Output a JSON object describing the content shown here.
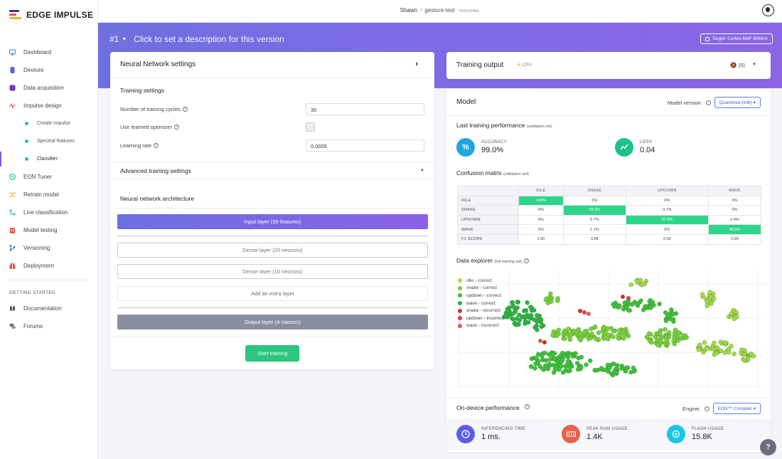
{
  "brand": {
    "name": "EDGE IMPULSE",
    "colors": [
      "#2e3a8c",
      "#e8534a",
      "#f2b132",
      "#26c281"
    ]
  },
  "topbar": {
    "user": "Shawn",
    "separator": "/",
    "project": "gesture-test",
    "project_badge": "PERSONAL"
  },
  "sidebar": {
    "items": [
      {
        "label": "Dashboard",
        "icon": "monitor-icon",
        "color": "#3b82f6"
      },
      {
        "label": "Devices",
        "icon": "devices-icon",
        "color": "#5b5fe6"
      },
      {
        "label": "Data acquisition",
        "icon": "database-icon",
        "color": "#6d3fc0"
      },
      {
        "label": "Impulse design",
        "icon": "pulse-icon",
        "color": "#e8534a"
      }
    ],
    "sub_items": [
      {
        "label": "Create impulse"
      },
      {
        "label": "Spectral features"
      },
      {
        "label": "Classifier"
      }
    ],
    "items2": [
      {
        "label": "EON Tuner",
        "icon": "tuner-icon",
        "color": "#26c281"
      },
      {
        "label": "Retrain model",
        "icon": "shuffle-icon",
        "color": "#f2b132"
      },
      {
        "label": "Live classification",
        "icon": "live-icon",
        "color": "#26c281"
      },
      {
        "label": "Model testing",
        "icon": "clipboard-icon",
        "color": "#e8534a"
      },
      {
        "label": "Versioning",
        "icon": "branch-icon",
        "color": "#3b5fe0"
      },
      {
        "label": "Deployment",
        "icon": "gift-icon",
        "color": "#e8534a"
      }
    ],
    "section_label": "GETTING STARTED",
    "getting_started": [
      {
        "label": "Documentation",
        "icon": "book-icon"
      },
      {
        "label": "Forums",
        "icon": "chat-icon"
      }
    ]
  },
  "banner": {
    "version": "#1",
    "description": "Click to set a description for this version",
    "target": "Target: Cortex-M4F 80MHz"
  },
  "nn_settings": {
    "title": "Neural Network settings",
    "training_settings": "Training settings",
    "cycles_label": "Number of training cycles",
    "cycles_value": "30",
    "optimizer_label": "Use learned optimizer",
    "lr_label": "Learning rate",
    "lr_value": "0.0005",
    "advanced": "Advanced training settings",
    "architecture": "Neural network architecture",
    "layers": {
      "input": "Input layer (39 features)",
      "dense1": "Dense layer (20 neurons)",
      "dense2": "Dense layer (10 neurons)",
      "extra": "Add an extra layer",
      "output": "Output layer (4 classes)"
    },
    "start": "Start training"
  },
  "training_output": {
    "title": "Training output",
    "cpu": "CPU",
    "notifications": "(0)"
  },
  "model": {
    "title": "Model",
    "version_label": "Model version:",
    "version_value": "Quantized (int8)",
    "last_perf": "Last training performance",
    "last_perf_note": "(validation set)",
    "accuracy_label": "ACCURACY",
    "accuracy_value": "99.0%",
    "loss_label": "LOSS",
    "loss_value": "0.04",
    "confusion_title": "Confusion matrix",
    "confusion_note": "(validation set)",
    "explorer_title": "Data explorer",
    "explorer_note": "(full training set)",
    "ondevice_title": "On-device performance",
    "engine_label": "Engine:",
    "engine_value": "EON™ Compiler",
    "inferencing_label": "INFERENCING TIME",
    "inferencing_value": "1 ms.",
    "ram_label": "PEAK RAM USAGE",
    "ram_value": "1.4K",
    "flash_label": "FLASH USAGE",
    "flash_value": "15.8K"
  },
  "confusion": {
    "columns": [
      "",
      "IDLE",
      "SNAKE",
      "UPDOWN",
      "WAVE"
    ],
    "rows": [
      {
        "label": "IDLE",
        "cells": [
          "100%",
          "0%",
          "0%",
          "0%"
        ],
        "hi": 0
      },
      {
        "label": "SNAKE",
        "cells": [
          "0%",
          "99.3%",
          "0.7%",
          "0%"
        ],
        "hi": 1
      },
      {
        "label": "UPDOWN",
        "cells": [
          "0%",
          "0.7%",
          "97.9%",
          "1.4%"
        ],
        "hi": 2
      },
      {
        "label": "WAVE",
        "cells": [
          "0%",
          "1.1%",
          "0%",
          "98.9%"
        ],
        "hi": 3
      },
      {
        "label": "F1 SCORE",
        "cells": [
          "1.00",
          "0.98",
          "0.99",
          "0.99"
        ],
        "hi": -1
      }
    ]
  },
  "legend": [
    {
      "label": "idle - correct",
      "color": "#a8d84a"
    },
    {
      "label": "snake - correct",
      "color": "#7ccf3c"
    },
    {
      "label": "updown - correct",
      "color": "#3fbf3f"
    },
    {
      "label": "wave - correct",
      "color": "#2fb04a"
    },
    {
      "label": "snake - incorrect",
      "color": "#c0392b"
    },
    {
      "label": "updown - incorrect",
      "color": "#d64541"
    },
    {
      "label": "wave - incorrect",
      "color": "#e05a4f"
    }
  ]
}
